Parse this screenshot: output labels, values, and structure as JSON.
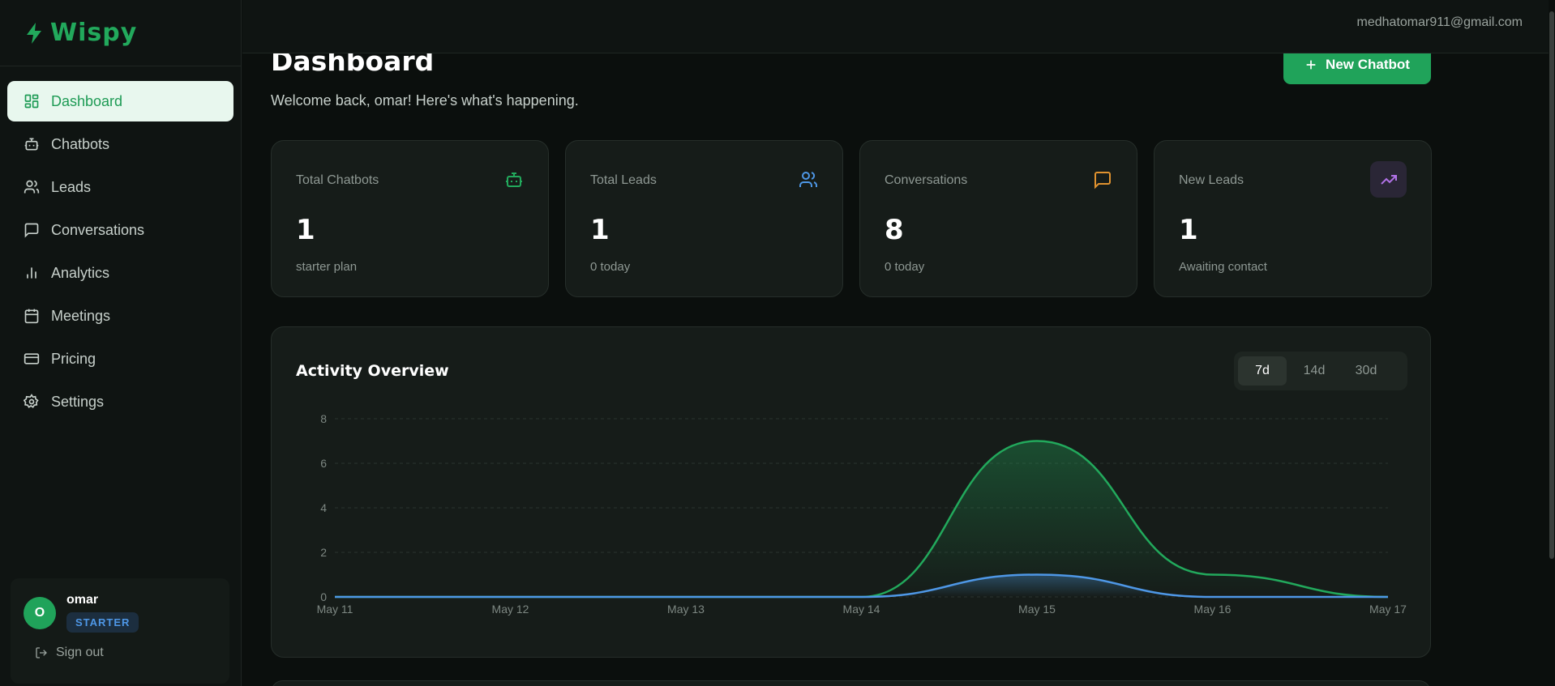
{
  "brand": {
    "name": "Wispy",
    "accent": "#22a95c"
  },
  "sidebar": {
    "items": [
      {
        "label": "Dashboard",
        "icon": "dashboard-grid-icon",
        "active": true
      },
      {
        "label": "Chatbots",
        "icon": "bot-icon"
      },
      {
        "label": "Leads",
        "icon": "users-icon"
      },
      {
        "label": "Conversations",
        "icon": "message-square-icon"
      },
      {
        "label": "Analytics",
        "icon": "bar-chart-icon"
      },
      {
        "label": "Meetings",
        "icon": "calendar-icon"
      },
      {
        "label": "Pricing",
        "icon": "credit-card-icon"
      },
      {
        "label": "Settings",
        "icon": "gear-icon"
      }
    ]
  },
  "user": {
    "initial": "O",
    "name": "omar",
    "plan": "STARTER",
    "signout": "Sign out"
  },
  "topbar": {
    "email": "medhatomar911@gmail.com"
  },
  "page": {
    "title": "Dashboard",
    "subtitle": "Welcome back, omar! Here's what's happening.",
    "new_button": "New Chatbot"
  },
  "stats": [
    {
      "label": "Total Chatbots",
      "value": "1",
      "foot": "starter plan",
      "icon": "bot-icon",
      "color": "#22a95c"
    },
    {
      "label": "Total Leads",
      "value": "1",
      "foot": "0 today",
      "icon": "users-icon",
      "color": "#4e97e6"
    },
    {
      "label": "Conversations",
      "value": "8",
      "foot": "0 today",
      "icon": "message-square-icon",
      "color": "#e0922f"
    },
    {
      "label": "New Leads",
      "value": "1",
      "foot": "Awaiting contact",
      "icon": "trending-up-icon",
      "color": "#b071e6"
    }
  ],
  "activity": {
    "title": "Activity Overview",
    "ranges": [
      "7d",
      "14d",
      "30d"
    ],
    "selected_range": "7d"
  },
  "chart_data": {
    "type": "area",
    "x": [
      "May 11",
      "May 12",
      "May 13",
      "May 14",
      "May 15",
      "May 16",
      "May 17"
    ],
    "series": [
      {
        "values": [
          0,
          0,
          0,
          0,
          7,
          1,
          0
        ],
        "color": "#22a95c"
      },
      {
        "values": [
          0,
          0,
          0,
          0,
          1,
          0,
          0
        ],
        "color": "#4e97e6"
      }
    ],
    "yticks": [
      "0",
      "2",
      "4",
      "6",
      "8"
    ],
    "ylim": [
      0,
      8
    ],
    "grid": true
  }
}
